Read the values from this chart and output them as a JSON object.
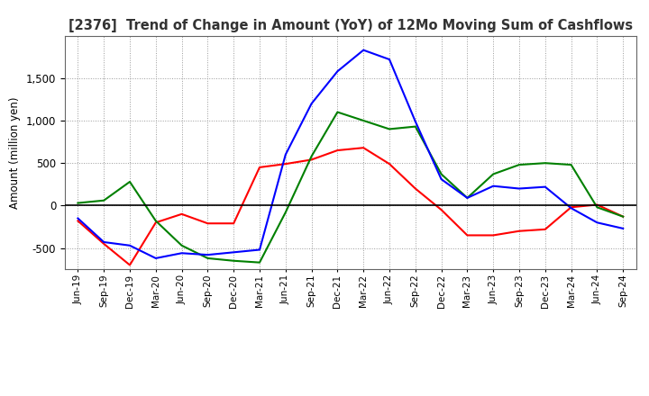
{
  "title": "[2376]  Trend of Change in Amount (YoY) of 12Mo Moving Sum of Cashflows",
  "ylabel": "Amount (million yen)",
  "x_labels": [
    "Jun-19",
    "Sep-19",
    "Dec-19",
    "Mar-20",
    "Jun-20",
    "Sep-20",
    "Dec-20",
    "Mar-21",
    "Jun-21",
    "Sep-21",
    "Dec-21",
    "Mar-22",
    "Jun-22",
    "Sep-22",
    "Dec-22",
    "Mar-23",
    "Jun-23",
    "Sep-23",
    "Dec-23",
    "Mar-24",
    "Jun-24",
    "Sep-24"
  ],
  "operating": [
    -180,
    -450,
    -700,
    -200,
    -100,
    -210,
    -210,
    450,
    490,
    540,
    650,
    680,
    490,
    200,
    -50,
    -350,
    -350,
    -300,
    -280,
    -20,
    10,
    -130
  ],
  "investing": [
    30,
    60,
    280,
    -180,
    -470,
    -620,
    -650,
    -670,
    -80,
    580,
    1100,
    1000,
    900,
    930,
    370,
    90,
    370,
    480,
    500,
    480,
    -20,
    -130
  ],
  "free": [
    -150,
    -430,
    -470,
    -620,
    -560,
    -580,
    -550,
    -520,
    600,
    1200,
    1580,
    1830,
    1720,
    990,
    310,
    90,
    230,
    200,
    220,
    -30,
    -200,
    -270
  ],
  "ylim": [
    -750,
    2000
  ],
  "yticks": [
    -500,
    0,
    500,
    1000,
    1500
  ],
  "operating_color": "#ff0000",
  "investing_color": "#008000",
  "free_color": "#0000ff",
  "bg_color": "#ffffff",
  "grid_color": "#999999",
  "zero_line_color": "#000000",
  "title_color": "#333333"
}
